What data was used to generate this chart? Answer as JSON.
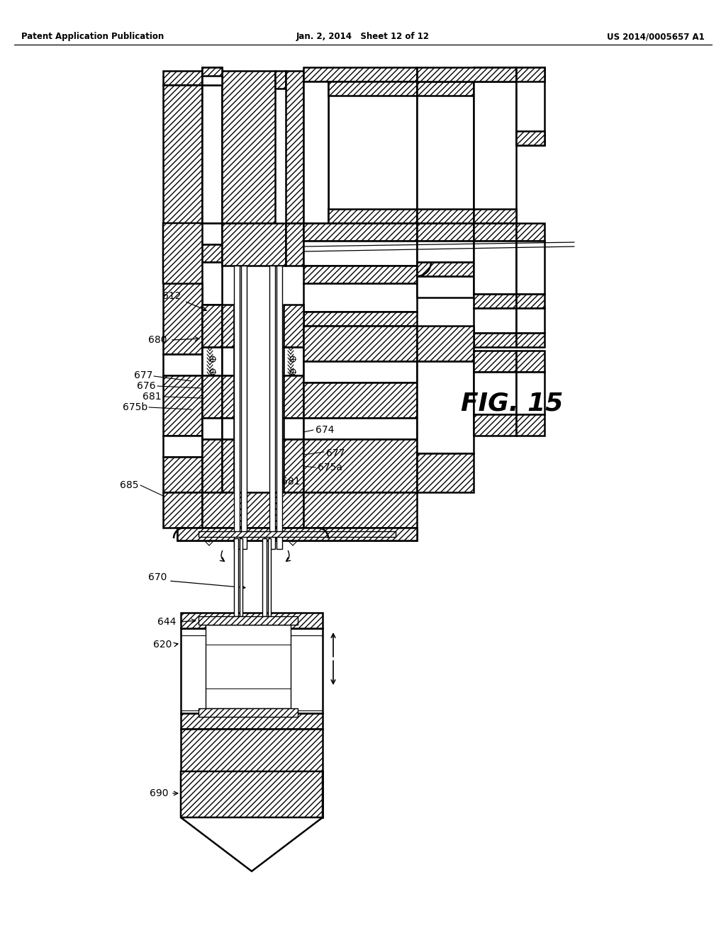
{
  "background_color": "#ffffff",
  "header_left": "Patent Application Publication",
  "header_center": "Jan. 2, 2014   Sheet 12 of 12",
  "header_right": "US 2014/0005657 A1",
  "fig_label": "FIG. 15"
}
